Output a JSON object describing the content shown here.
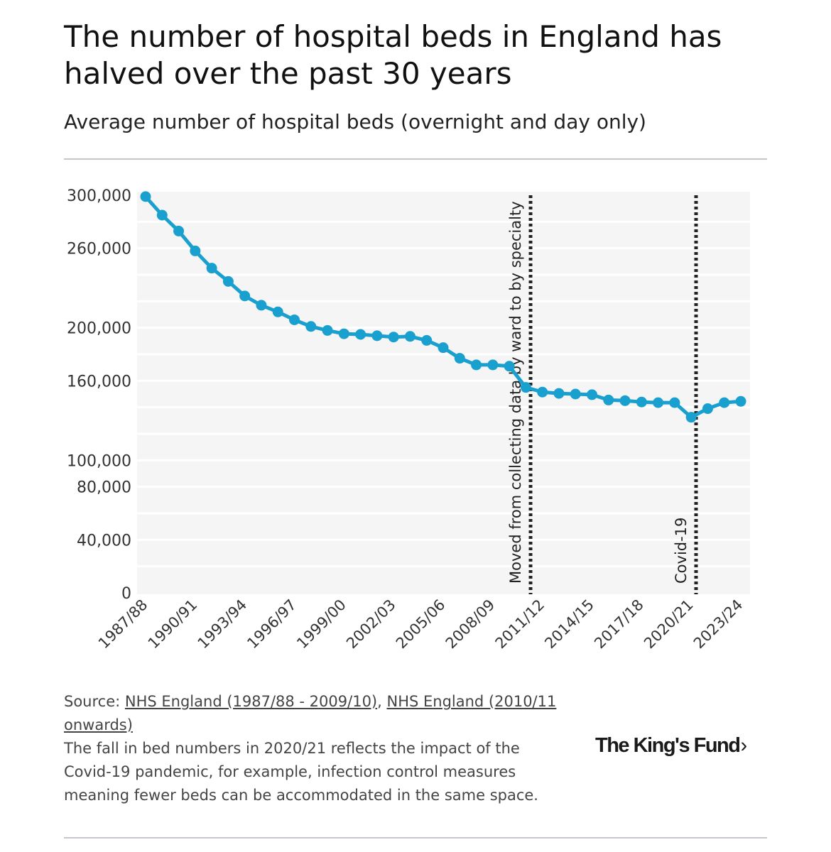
{
  "header": {
    "title": "The number of hospital beds in England has halved over the past 30 years",
    "subtitle": "Average number of hospital beds (overnight and day only)"
  },
  "chart_data": {
    "type": "line",
    "title": "The number of hospital beds in England has halved over the past 30 years",
    "subtitle": "Average number of hospital beds (overnight and day only)",
    "xlabel": "",
    "ylabel": "",
    "x_tick_labels": [
      "1987/88",
      "1990/91",
      "1993/94",
      "1996/97",
      "1999/00",
      "2002/03",
      "2005/06",
      "2008/09",
      "2011/12",
      "2014/15",
      "2017/18",
      "2020/21",
      "2023/24"
    ],
    "y_tick_labels": [
      "0",
      "40,000",
      "80,000",
      "100,000",
      "160,000",
      "200,000",
      "260,000",
      "300,000"
    ],
    "y_ticks": [
      0,
      40000,
      80000,
      100000,
      160000,
      200000,
      260000,
      300000
    ],
    "ylim": [
      0,
      300000
    ],
    "grid": true,
    "x": [
      "1987/88",
      "1988/89",
      "1989/90",
      "1990/91",
      "1991/92",
      "1992/93",
      "1993/94",
      "1994/95",
      "1995/96",
      "1996/97",
      "1997/98",
      "1998/99",
      "1999/00",
      "2000/01",
      "2001/02",
      "2002/03",
      "2003/04",
      "2004/05",
      "2005/06",
      "2006/07",
      "2007/08",
      "2008/09",
      "2009/10",
      "2010/11",
      "2011/12",
      "2012/13",
      "2013/14",
      "2014/15",
      "2015/16",
      "2016/17",
      "2017/18",
      "2018/19",
      "2019/20",
      "2020/21",
      "2021/22",
      "2022/23",
      "2023/24"
    ],
    "series": [
      {
        "color": "#1aa0cf",
        "values": [
          299000,
          285000,
          273000,
          258000,
          245000,
          235000,
          224000,
          217000,
          212000,
          206000,
          201000,
          198000,
          195500,
          195000,
          194000,
          193000,
          193500,
          190500,
          185000,
          177000,
          172000,
          172000,
          171000,
          155000,
          151500,
          150500,
          150000,
          149500,
          145500,
          145000,
          144000,
          143500,
          143500,
          132500,
          139000,
          143500,
          144500
        ]
      }
    ],
    "annotations": [
      {
        "x": "2010/11",
        "label": "Moved from collecting data by ward to by specialty",
        "style": "dotted-vertical-line"
      },
      {
        "x": "2020/21",
        "label": "Covid-19",
        "style": "dotted-vertical-line"
      }
    ]
  },
  "footer": {
    "source_prefix": "Source: ",
    "source_link_1": "NHS England (1987/88 - 2009/10)",
    "source_separator": ", ",
    "source_link_2": "NHS England (2010/11 onwards)",
    "note": "The fall in bed numbers in 2020/21 reflects the impact of the Covid-19 pandemic, for example, infection control measures meaning fewer beds can be accommodated in the same space."
  },
  "logo": {
    "text": "The King's Fund",
    "chevron": "›"
  },
  "colors": {
    "line": "#1aa0cf",
    "plot_background": "#f5f5f5",
    "grid": "#ffffff",
    "annotation_line": "#222222"
  }
}
